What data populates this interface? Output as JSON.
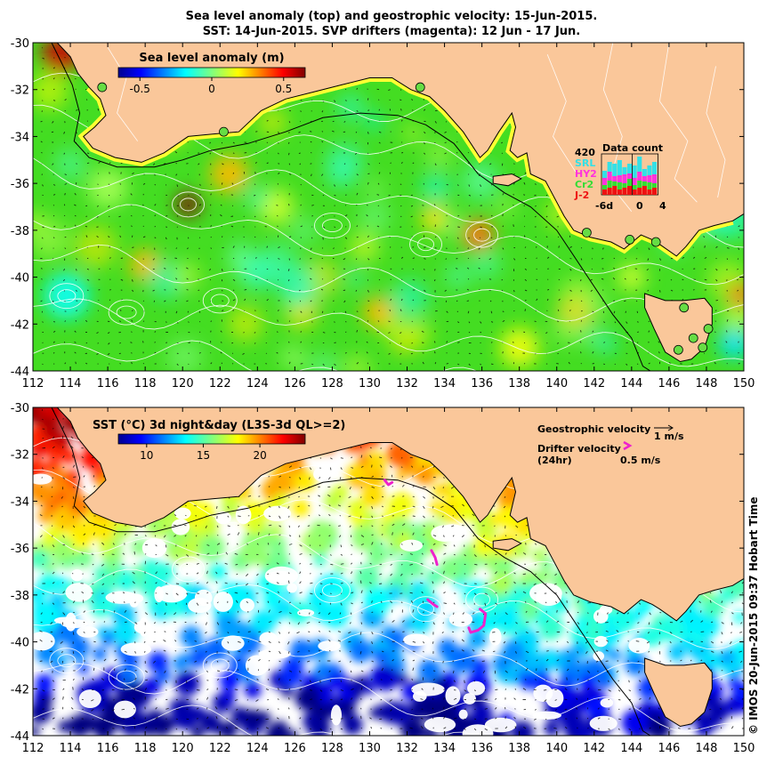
{
  "header": {
    "title_line1": "Sea level anomaly (top) and geostrophic velocity: 15-Jun-2015.",
    "title_line2": "SST: 14-Jun-2015. SVP drifters (magenta): 12 Jun - 17 Jun."
  },
  "axes": {
    "x_ticks": [
      "112",
      "114",
      "116",
      "118",
      "120",
      "122",
      "124",
      "126",
      "128",
      "130",
      "132",
      "134",
      "136",
      "138",
      "140",
      "142",
      "144",
      "146",
      "148",
      "150"
    ],
    "y_ticks": [
      "-30",
      "-32",
      "-34",
      "-36",
      "-38",
      "-40",
      "-42",
      "-44"
    ],
    "lon_range": [
      112,
      150
    ],
    "lat_range": [
      -44,
      -30
    ]
  },
  "top_panel": {
    "colorbar_label": "Sea level anomaly (m)",
    "colorbar_ticks": [
      "-0.5",
      "0",
      "0.5"
    ],
    "colorbar_range": [
      -0.65,
      0.65
    ]
  },
  "data_count": {
    "title": "Data count",
    "max_label": "420",
    "satellites": [
      "SRL",
      "HY2",
      "Cr2",
      "J-2"
    ],
    "satellite_colors": [
      "#33e0e6",
      "#ff33dd",
      "#33dd33",
      "#ee1111"
    ],
    "x_labels": [
      "-6d",
      "0",
      "4"
    ]
  },
  "bottom_panel": {
    "colorbar_label": "SST (°C) 3d night&day (L3S-3d QL>=2)",
    "colorbar_ticks": [
      "10",
      "15",
      "20"
    ],
    "colorbar_range": [
      7.5,
      24
    ],
    "geo_legend_label": "Geostrophic velocity",
    "geo_legend_scale": "1 m/s",
    "drifter_legend_label": "Drifter velocity",
    "drifter_legend_sub": "(24hr)",
    "drifter_legend_scale": "0.5 m/s"
  },
  "credit": "© IMOS 20-Jun-2015 09:37 Hobart Time",
  "colors": {
    "land": "#fac79a",
    "drifter": "#ee22cc",
    "contour": "#ffffff",
    "shelf": "#000000"
  }
}
